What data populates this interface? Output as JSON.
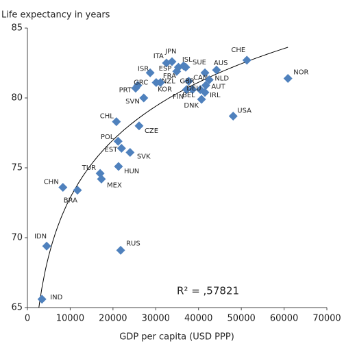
{
  "chart_data": {
    "type": "scatter",
    "y_label": "Life expectancy in years",
    "x_label": "GDP per capita (USD PPP)",
    "annotation": "R² = ,57821",
    "color": "#4f81bd",
    "labels": [
      "IND",
      "IDN",
      "CHN",
      "BRA",
      "TUR",
      "MEX",
      "HUN",
      "RUS",
      "SVK",
      "EST",
      "POL",
      "CZE",
      "CHL",
      "SVN",
      "PRT",
      "GRC",
      "ISR",
      "ITA",
      "JPN",
      "ESP",
      "ISL",
      "SUE",
      "FRA",
      "NZL",
      "KOR",
      "GBR",
      "FIN",
      "BEL",
      "DEU",
      "CAN",
      "AUT",
      "NLD",
      "AUS",
      "IRL",
      "DNK",
      "USA",
      "CHE",
      "NOR"
    ],
    "x": [
      3400,
      4500,
      8300,
      11700,
      17000,
      17300,
      21300,
      21800,
      24000,
      22000,
      21200,
      26100,
      20800,
      27200,
      25300,
      25800,
      28700,
      32500,
      33800,
      35300,
      36500,
      37000,
      34900,
      30100,
      31100,
      37700,
      37200,
      38600,
      40400,
      41500,
      41700,
      42500,
      44200,
      41500,
      40700,
      48100,
      51300,
      60900
    ],
    "values": [
      65.6,
      69.4,
      73.6,
      73.4,
      74.6,
      74.2,
      75.1,
      69.1,
      76.1,
      76.4,
      76.9,
      78.0,
      78.3,
      80.0,
      80.7,
      80.9,
      81.8,
      82.5,
      82.6,
      82.2,
      82.3,
      82.2,
      81.9,
      81.1,
      81.1,
      81.2,
      80.6,
      80.6,
      80.6,
      81.8,
      80.9,
      81.3,
      82.0,
      80.4,
      79.9,
      78.7,
      82.7,
      81.4
    ],
    "xlim": [
      0,
      70000
    ],
    "xticks": [
      0,
      10000,
      20000,
      30000,
      40000,
      50000,
      60000,
      70000
    ],
    "ylim": [
      65,
      85
    ],
    "yticks": [
      65,
      70,
      75,
      80,
      85
    ],
    "trendline": "log"
  }
}
